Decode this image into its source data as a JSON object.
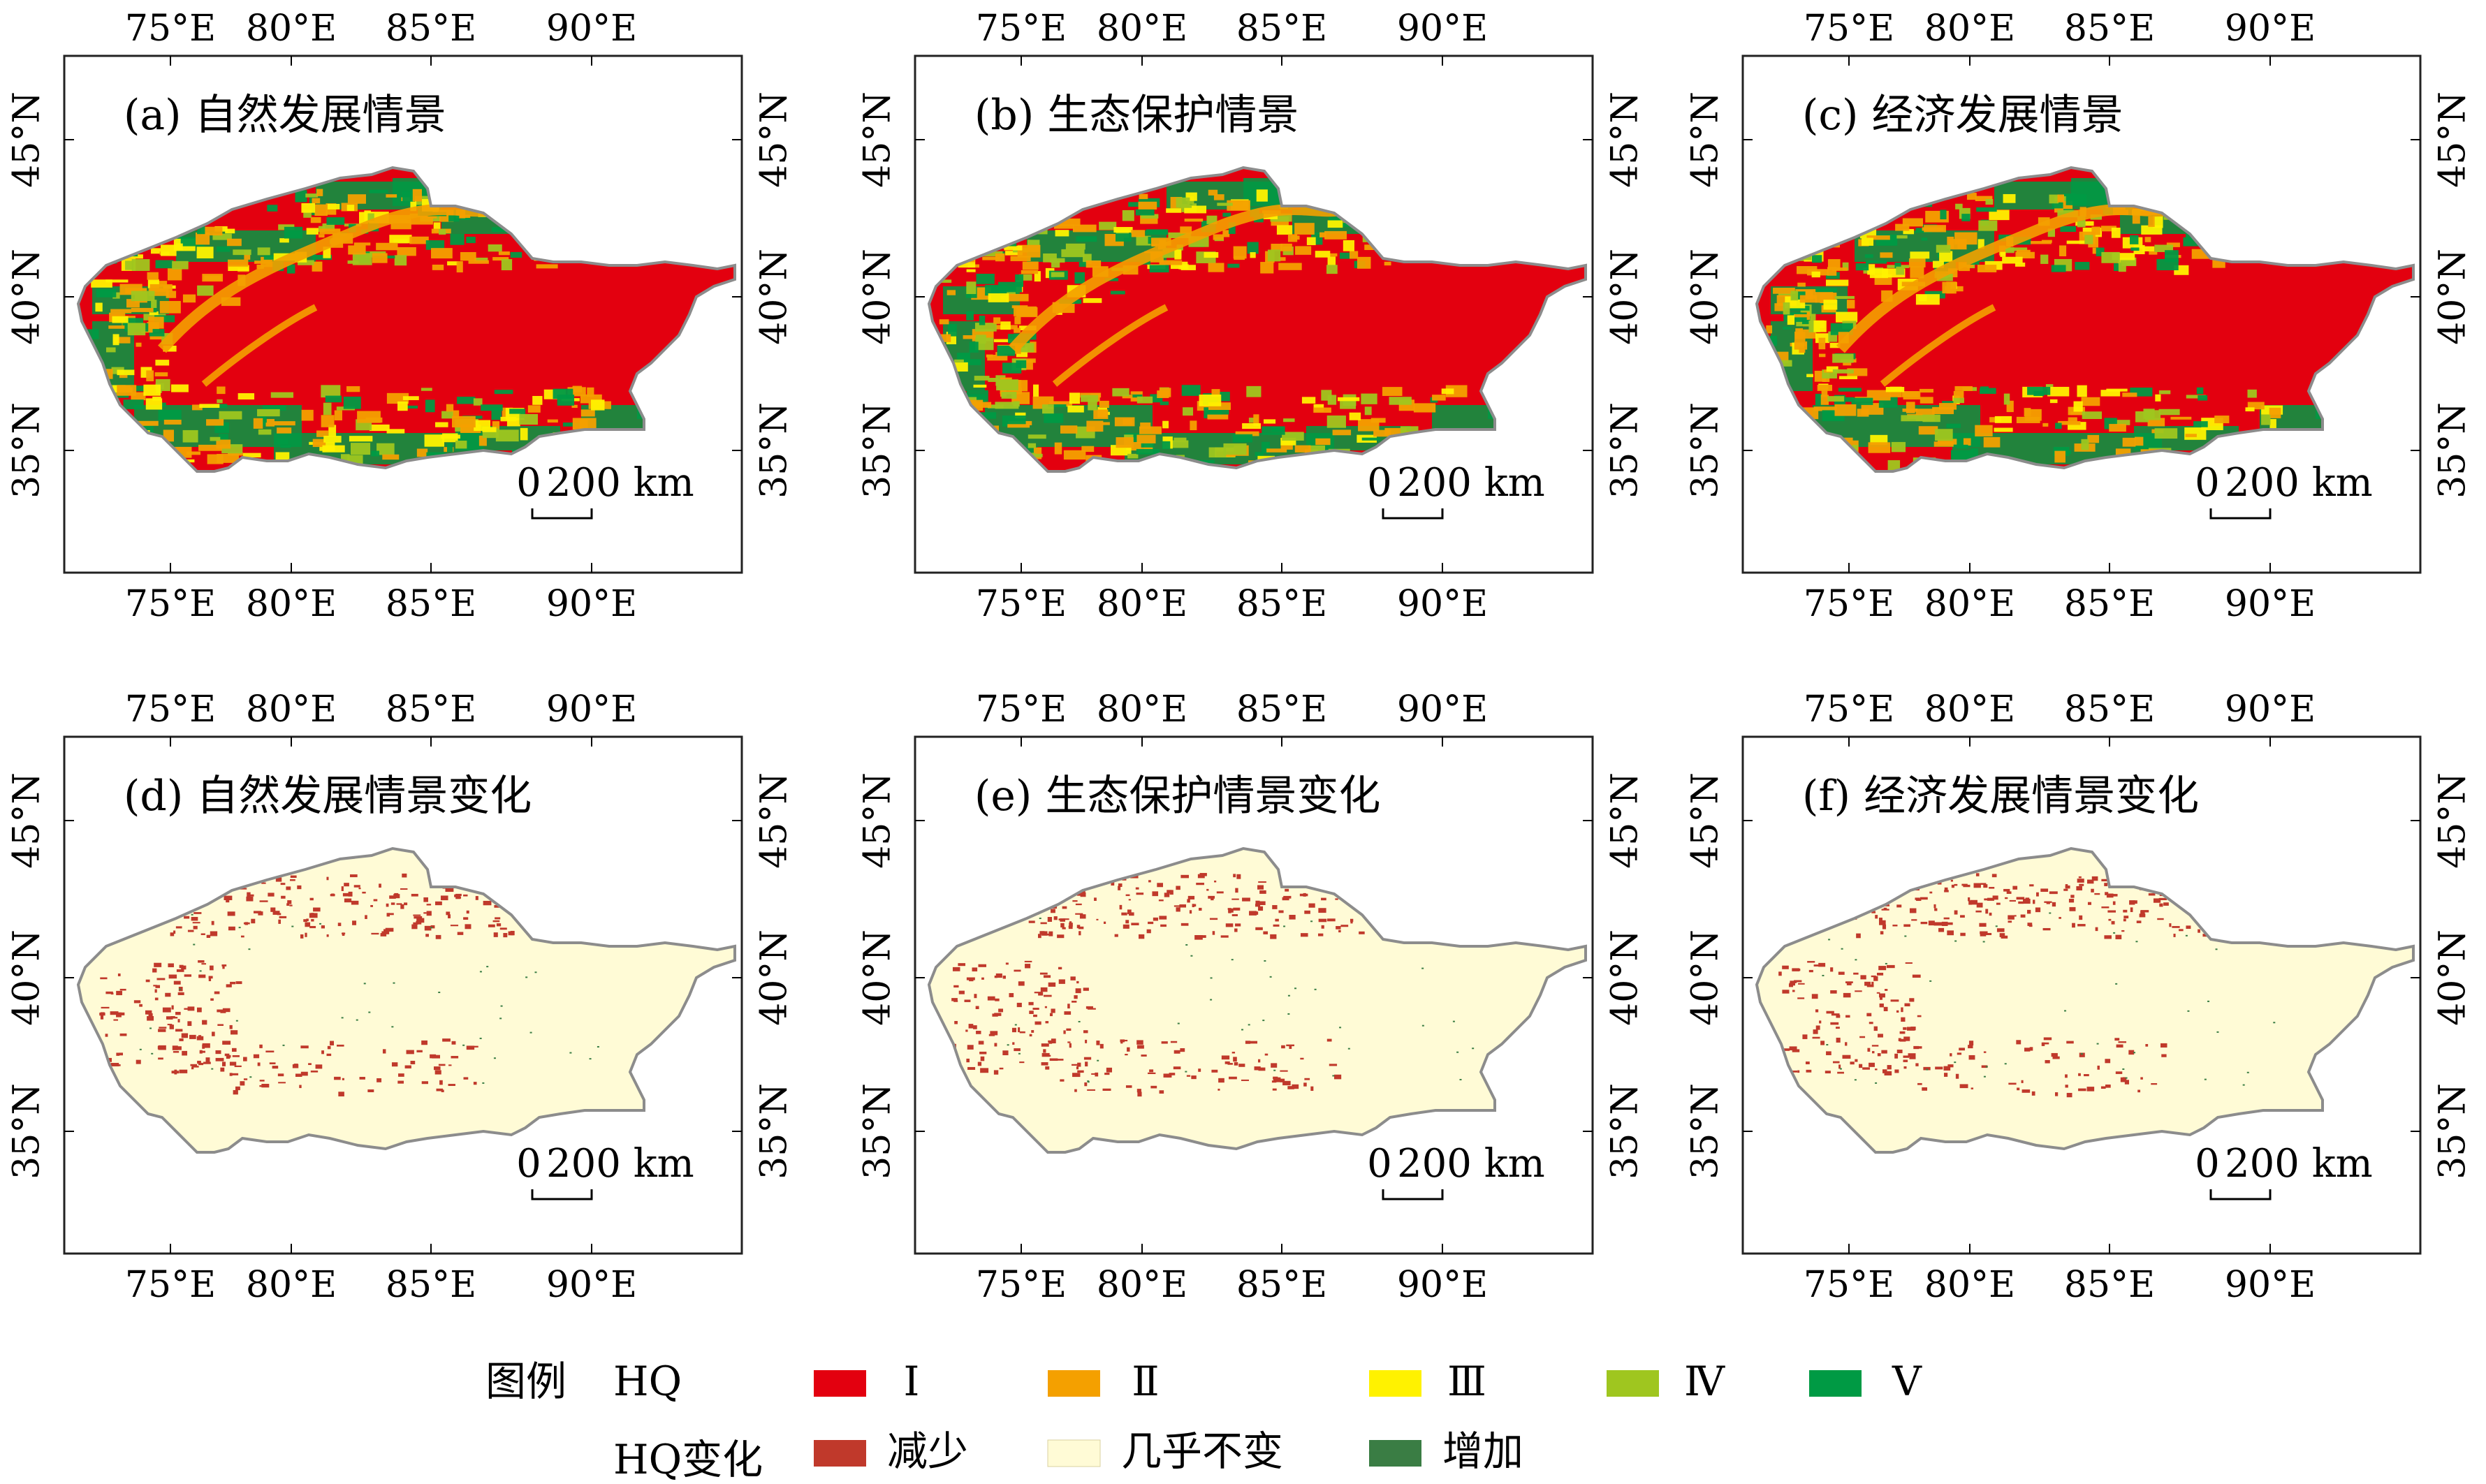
{
  "colors": {
    "hq_I": "#e3000f",
    "hq_II": "#f4a000",
    "hq_III": "#fff200",
    "hq_IV": "#9fc61f",
    "hq_V": "#009a44",
    "decrease": "#c0392b",
    "nochange": "#fffbd6",
    "increase": "#3a7d44",
    "boundary": "#8c8c8c",
    "frame": "#222222"
  },
  "axes": {
    "x_ticks": [
      "75°E",
      "80°E",
      "85°E",
      "90°E"
    ],
    "y_ticks": [
      "45°N",
      "40°N",
      "35°N"
    ]
  },
  "scale_bar": {
    "zero": "0",
    "label": "200 km"
  },
  "panels": [
    {
      "id": "a",
      "title": "(a) 自然发展情景",
      "kind": "hq"
    },
    {
      "id": "b",
      "title": "(b) 生态保护情景",
      "kind": "hq"
    },
    {
      "id": "c",
      "title": "(c) 经济发展情景",
      "kind": "hq"
    },
    {
      "id": "d",
      "title": "(d) 自然发展情景变化",
      "kind": "change"
    },
    {
      "id": "e",
      "title": "(e) 生态保护情景变化",
      "kind": "change"
    },
    {
      "id": "f",
      "title": "(f) 经济发展情景变化",
      "kind": "change"
    }
  ],
  "legend": {
    "title": "图例",
    "row1_label": "HQ",
    "row1_items": [
      {
        "label": "Ⅰ",
        "color_key": "hq_I"
      },
      {
        "label": "Ⅱ",
        "color_key": "hq_II"
      },
      {
        "label": "Ⅲ",
        "color_key": "hq_III"
      },
      {
        "label": "Ⅳ",
        "color_key": "hq_IV"
      },
      {
        "label": "Ⅴ",
        "color_key": "hq_V"
      }
    ],
    "row2_label": "HQ变化",
    "row2_items": [
      {
        "label": "减少",
        "color_key": "decrease"
      },
      {
        "label": "几乎不变",
        "color_key": "nochange"
      },
      {
        "label": "增加",
        "color_key": "increase"
      }
    ]
  }
}
